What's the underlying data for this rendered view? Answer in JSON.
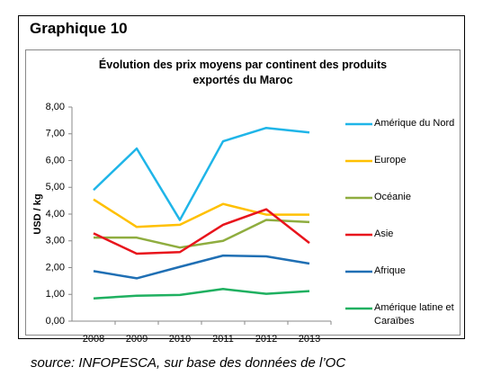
{
  "chart_data": {
    "type": "line",
    "heading": "Graphique 10",
    "title": "Évolution des prix moyens par continent des produits exportés du Maroc",
    "ylabel": "USD / kg",
    "source": "source: INFOPESCA, sur base des données de l’OC",
    "categories": [
      "2008",
      "2009",
      "2010",
      "2011",
      "2012",
      "2013"
    ],
    "ylim": [
      0,
      8
    ],
    "yticks": [
      {
        "value": 0,
        "label": "0,00"
      },
      {
        "value": 1,
        "label": "1,00"
      },
      {
        "value": 2,
        "label": "2,00"
      },
      {
        "value": 3,
        "label": "3,00"
      },
      {
        "value": 4,
        "label": "4,00"
      },
      {
        "value": 5,
        "label": "5,00"
      },
      {
        "value": 6,
        "label": "6,00"
      },
      {
        "value": 7,
        "label": "7,00"
      },
      {
        "value": 8,
        "label": "8,00"
      }
    ],
    "legend": "right",
    "series": [
      {
        "name": "Amérique du Nord",
        "color": "#1fb5e8",
        "values": [
          4.9,
          6.45,
          3.78,
          6.72,
          7.22,
          7.05
        ]
      },
      {
        "name": "Europe",
        "color": "#ffc000",
        "values": [
          4.55,
          3.52,
          3.6,
          4.38,
          3.98,
          3.98
        ]
      },
      {
        "name": "Océanie",
        "color": "#8fad3f",
        "values": [
          3.12,
          3.12,
          2.75,
          3.0,
          3.78,
          3.7
        ]
      },
      {
        "name": "Asie",
        "color": "#e8141c",
        "values": [
          3.28,
          2.52,
          2.58,
          3.6,
          4.18,
          2.92
        ]
      },
      {
        "name": "Afrique",
        "color": "#1f6fb4",
        "values": [
          1.87,
          1.6,
          2.03,
          2.45,
          2.42,
          2.15
        ]
      },
      {
        "name": "Amérique latine et Caraïbes",
        "color": "#1fb060",
        "values": [
          0.85,
          0.95,
          0.98,
          1.2,
          1.02,
          1.12
        ]
      }
    ]
  }
}
